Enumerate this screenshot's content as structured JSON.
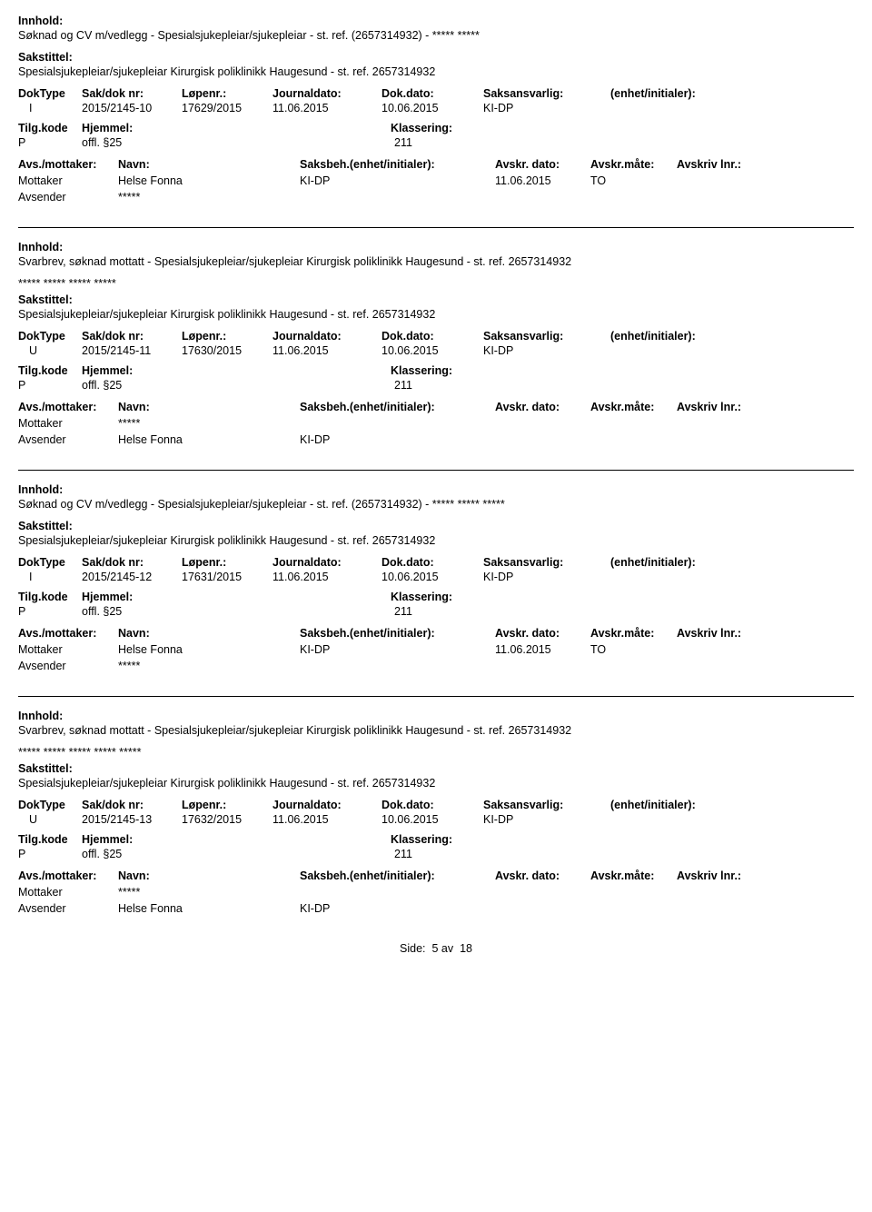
{
  "labels": {
    "innhold": "Innhold:",
    "sakstittel": "Sakstittel:",
    "doktype": "DokType",
    "sakdok": "Sak/dok nr:",
    "lopenr": "Løpenr.:",
    "journaldato": "Journaldato:",
    "dokdato": "Dok.dato:",
    "saksansvarlig": "Saksansvarlig:",
    "enhet": "(enhet/initialer):",
    "tilgkode": "Tilg.kode",
    "hjemmel": "Hjemmel:",
    "klassering": "Klassering:",
    "avsmottaker": "Avs./mottaker:",
    "navn": "Navn:",
    "saksbeh": "Saksbeh.(enhet/initialer):",
    "avskrdato": "Avskr. dato:",
    "avskrmate": "Avskr.måte:",
    "avskrivlnr": "Avskriv lnr.:",
    "mottaker": "Mottaker",
    "avsender": "Avsender"
  },
  "entries": [
    {
      "innhold": "Søknad og CV m/vedlegg - Spesialsjukepleiar/sjukepleiar - st. ref. (2657314932) - ***** *****",
      "innhold_sub": "",
      "sakstittel": "Spesialsjukepleiar/sjukepleiar Kirurgisk poliklinikk Haugesund - st. ref. 2657314932",
      "doktype": "I",
      "sakdok": "2015/2145-10",
      "lopenr": "17629/2015",
      "journaldato": "11.06.2015",
      "dokdato": "10.06.2015",
      "saksansvarlig": "KI-DP",
      "tilgkode": "P",
      "hjemmel": "offl. §25",
      "klassering": "211",
      "parties": [
        {
          "role": "Mottaker",
          "navn": "Helse Fonna",
          "saksb": "KI-DP",
          "adato": "11.06.2015",
          "amate": "TO",
          "alnr": ""
        },
        {
          "role": "Avsender",
          "navn": "*****",
          "saksb": "",
          "adato": "",
          "amate": "",
          "alnr": ""
        }
      ]
    },
    {
      "innhold": "Svarbrev, søknad mottatt - Spesialsjukepleiar/sjukepleiar Kirurgisk poliklinikk Haugesund - st. ref. 2657314932",
      "innhold_sub": "***** ***** ***** *****",
      "sakstittel": "Spesialsjukepleiar/sjukepleiar Kirurgisk poliklinikk Haugesund - st. ref. 2657314932",
      "doktype": "U",
      "sakdok": "2015/2145-11",
      "lopenr": "17630/2015",
      "journaldato": "11.06.2015",
      "dokdato": "10.06.2015",
      "saksansvarlig": "KI-DP",
      "tilgkode": "P",
      "hjemmel": "offl. §25",
      "klassering": "211",
      "parties": [
        {
          "role": "Mottaker",
          "navn": "*****",
          "saksb": "",
          "adato": "",
          "amate": "",
          "alnr": ""
        },
        {
          "role": "Avsender",
          "navn": "Helse Fonna",
          "saksb": "KI-DP",
          "adato": "",
          "amate": "",
          "alnr": ""
        }
      ]
    },
    {
      "innhold": "Søknad og CV m/vedlegg - Spesialsjukepleiar/sjukepleiar - st. ref. (2657314932) - ***** ***** *****",
      "innhold_sub": "",
      "sakstittel": "Spesialsjukepleiar/sjukepleiar Kirurgisk poliklinikk Haugesund - st. ref. 2657314932",
      "doktype": "I",
      "sakdok": "2015/2145-12",
      "lopenr": "17631/2015",
      "journaldato": "11.06.2015",
      "dokdato": "10.06.2015",
      "saksansvarlig": "KI-DP",
      "tilgkode": "P",
      "hjemmel": "offl. §25",
      "klassering": "211",
      "parties": [
        {
          "role": "Mottaker",
          "navn": "Helse Fonna",
          "saksb": "KI-DP",
          "adato": "11.06.2015",
          "amate": "TO",
          "alnr": ""
        },
        {
          "role": "Avsender",
          "navn": "*****",
          "saksb": "",
          "adato": "",
          "amate": "",
          "alnr": ""
        }
      ]
    },
    {
      "innhold": "Svarbrev, søknad mottatt - Spesialsjukepleiar/sjukepleiar Kirurgisk poliklinikk Haugesund - st. ref. 2657314932",
      "innhold_sub": "***** ***** ***** ***** *****",
      "sakstittel": "Spesialsjukepleiar/sjukepleiar Kirurgisk poliklinikk Haugesund - st. ref. 2657314932",
      "doktype": "U",
      "sakdok": "2015/2145-13",
      "lopenr": "17632/2015",
      "journaldato": "11.06.2015",
      "dokdato": "10.06.2015",
      "saksansvarlig": "KI-DP",
      "tilgkode": "P",
      "hjemmel": "offl. §25",
      "klassering": "211",
      "parties": [
        {
          "role": "Mottaker",
          "navn": "*****",
          "saksb": "",
          "adato": "",
          "amate": "",
          "alnr": ""
        },
        {
          "role": "Avsender",
          "navn": "Helse Fonna",
          "saksb": "KI-DP",
          "adato": "",
          "amate": "",
          "alnr": ""
        }
      ]
    }
  ],
  "footer": {
    "label": "Side:",
    "current": "5",
    "sep": "av",
    "total": "18"
  }
}
